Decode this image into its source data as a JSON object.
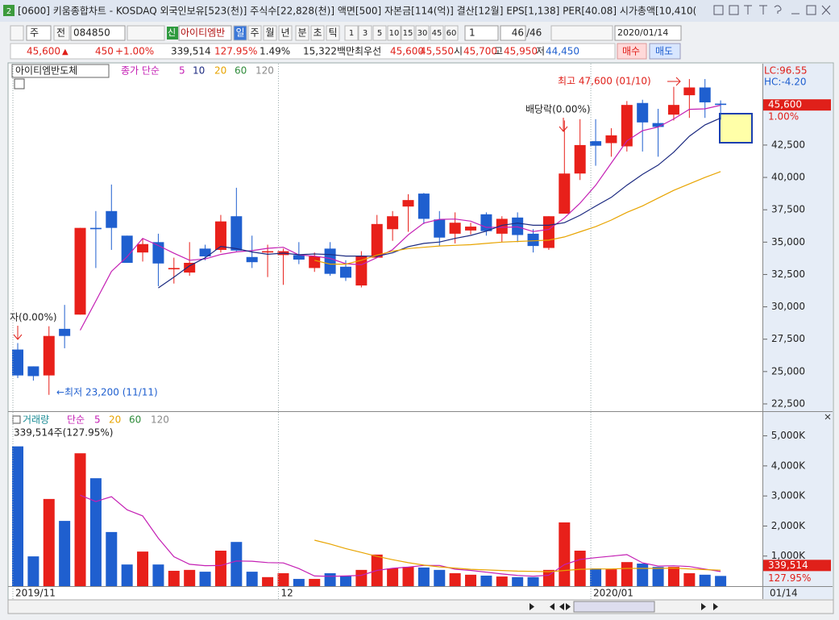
{
  "ui": {
    "window_icon": "2",
    "window_title": "[0600] 키움종합차트 - KOSDAQ 외국인보유[523(천)] 주식수[22,828(천)] 액면[500] 자본금[114(억)] 결산[12월] EPS[1,138] PER[40.08] 시가총액[10,410(",
    "toolbar": {
      "period_unit": "주",
      "prev": "전",
      "code": "084850",
      "credit": "신",
      "stock_name": "아이티엠반",
      "periods": [
        "일",
        "주",
        "월",
        "년",
        "분",
        "초",
        "틱"
      ],
      "intervals": [
        "1",
        "3",
        "5",
        "10",
        "15",
        "30",
        "45",
        "60"
      ],
      "count": "1",
      "page": "46",
      "total": "/46",
      "date": "2020/01/14"
    },
    "quote": {
      "price": "45,600",
      "arrow": "▲",
      "change": "450",
      "change_pct": "+1.00%",
      "volume": "339,514",
      "volume_ratio": "127.95%",
      "turnover": "1.49%",
      "amount": "15,322백만",
      "best_label": "최우선",
      "ask": "45,600",
      "bid": "45,550",
      "open_label": "시",
      "open": "45,700",
      "high_label": "고",
      "high": "45,950",
      "low_label": "저",
      "low": "44,450",
      "buy": "매수",
      "sell": "매도"
    }
  },
  "chart_data": [
    {
      "type": "candlestick",
      "title": "아이티엠반도체",
      "ma_label": "종가 단순",
      "up_color": "#e8201a",
      "down_color": "#1f5fcf",
      "open": [
        26700,
        25400,
        24700,
        28300,
        29400,
        36100,
        37400,
        35500,
        34200,
        35000,
        32900,
        32650,
        34500,
        34400,
        37000,
        33850,
        34200,
        34000,
        34000,
        33000,
        34500,
        33100,
        31650,
        33800,
        36000,
        37750,
        38750,
        36750,
        35650,
        35900,
        37150,
        35650,
        36900,
        35650,
        34550,
        37200,
        40300,
        42800,
        42650,
        42400,
        45750,
        44200,
        44850,
        46350,
        46950,
        45700
      ],
      "high": [
        27200,
        25400,
        28500,
        30150,
        36100,
        37400,
        39450,
        35500,
        35300,
        35650,
        33800,
        35000,
        34800,
        37100,
        39200,
        35500,
        34800,
        34500,
        35000,
        34200,
        35000,
        33600,
        34300,
        37100,
        37400,
        38700,
        38800,
        37400,
        37300,
        36500,
        37300,
        37000,
        37300,
        36000,
        37000,
        44400,
        44500,
        44500,
        43800,
        45900,
        46000,
        45300,
        47000,
        47600,
        47600,
        45950
      ],
      "low": [
        24500,
        24300,
        23200,
        26800,
        29400,
        33000,
        34400,
        33400,
        33500,
        31600,
        31800,
        32400,
        33600,
        34200,
        34300,
        33000,
        32300,
        31700,
        33300,
        32700,
        32400,
        32000,
        31500,
        33800,
        35100,
        35800,
        36400,
        34700,
        34900,
        35600,
        35500,
        35000,
        35000,
        34200,
        34400,
        37200,
        39800,
        40900,
        41600,
        42000,
        42000,
        41600,
        44400,
        44600,
        44600,
        44450
      ],
      "close": [
        24700,
        24650,
        27750,
        27750,
        36100,
        36000,
        36100,
        33400,
        34850,
        33350,
        33000,
        33400,
        33900,
        36600,
        34350,
        33450,
        34300,
        34300,
        33650,
        33900,
        32550,
        32250,
        33900,
        36400,
        37000,
        38250,
        36800,
        35350,
        36500,
        36200,
        35850,
        36800,
        35550,
        34700,
        37000,
        40300,
        42500,
        42450,
        43250,
        45600,
        44250,
        43900,
        45600,
        46950,
        45800,
        45600
      ],
      "series": [
        {
          "name": "5",
          "color": "#c41fb4",
          "values": [
            null,
            null,
            null,
            null,
            28190,
            30450,
            32740,
            33870,
            35290,
            34740,
            34140,
            33600,
            33700,
            34050,
            34250,
            34340,
            34520,
            34600,
            34010,
            33920,
            33740,
            33330,
            33250,
            33800,
            34420,
            35560,
            36470,
            36760,
            36780,
            36620,
            36140,
            36140,
            36180,
            35820,
            35980,
            36870,
            38010,
            39390,
            41100,
            42820,
            43610,
            43890,
            44520,
            45260,
            45300,
            45570
          ]
        },
        {
          "name": "10",
          "color": "#1c2a80",
          "values": [
            null,
            null,
            null,
            null,
            null,
            null,
            null,
            null,
            null,
            31465,
            32295,
            33170,
            33785,
            34670,
            34495,
            34240,
            34060,
            34150,
            34030,
            34085,
            34040,
            33925,
            33925,
            33905,
            34170,
            34650,
            34900,
            35005,
            35290,
            35520,
            35850,
            36305,
            36470,
            36300,
            36300,
            36505,
            37075,
            37785,
            38460,
            39400,
            40240,
            40950,
            41955,
            43180,
            44060,
            44590
          ]
        },
        {
          "name": "20",
          "color": "#e8a400",
          "values": [
            null,
            null,
            null,
            null,
            null,
            null,
            null,
            null,
            null,
            null,
            null,
            null,
            null,
            null,
            null,
            null,
            null,
            null,
            null,
            33600,
            33300,
            33300,
            33600,
            34000,
            34300,
            34500,
            34600,
            34700,
            34750,
            34800,
            34900,
            35000,
            35050,
            35100,
            35150,
            35400,
            35800,
            36200,
            36700,
            37300,
            37800,
            38400,
            39000,
            39500,
            40000,
            40450
          ]
        },
        {
          "name": "60",
          "color": "#2e8b3a"
        },
        {
          "name": "120",
          "color": "#8a8a8a"
        }
      ],
      "ylim": [
        22000,
        48600
      ],
      "yticks": [
        {
          "value": 22500,
          "label": "22,500"
        },
        {
          "value": 25000,
          "label": "25,000"
        },
        {
          "value": 27500,
          "label": "27,500"
        },
        {
          "value": 30000,
          "label": "30,000"
        },
        {
          "value": 32500,
          "label": "32,500"
        },
        {
          "value": 35000,
          "label": "35,000"
        },
        {
          "value": 37500,
          "label": "37,500"
        },
        {
          "value": 40000,
          "label": "40,000"
        },
        {
          "value": 42500,
          "label": "42,500"
        }
      ],
      "annotations": {
        "high": "최고 47,600 (01/10)",
        "ex_dividend": "배당락(0.00%)",
        "ex_rights": "자(0.00%)",
        "low": "←최저 23,200 (11/11)"
      },
      "lc": "LC:96.55",
      "hc": "HC:-4.20",
      "current": {
        "value": 45600,
        "label": "45,600"
      },
      "change_label": "1.00%"
    },
    {
      "type": "bar",
      "title": "거래량",
      "ma_label": "단순",
      "categories": [
        "2019/11",
        null,
        null,
        null,
        null,
        null,
        null,
        null,
        null,
        null,
        null,
        null,
        null,
        null,
        null,
        null,
        null,
        "12",
        null,
        null,
        null,
        null,
        null,
        null,
        null,
        null,
        null,
        null,
        null,
        null,
        null,
        null,
        null,
        null,
        null,
        null,
        null,
        "2020/01",
        null,
        null,
        null,
        null,
        null,
        null,
        null,
        null
      ],
      "values": [
        4650,
        990,
        2900,
        2170,
        4420,
        3590,
        1800,
        720,
        1150,
        720,
        510,
        540,
        480,
        1180,
        1470,
        480,
        300,
        430,
        240,
        240,
        430,
        350,
        540,
        1050,
        590,
        640,
        620,
        540,
        430,
        380,
        350,
        320,
        300,
        300,
        540,
        2120,
        1180,
        590,
        560,
        800,
        750,
        640,
        640,
        430,
        380,
        339.514
      ],
      "series": [
        {
          "name": "5",
          "color": "#c41fb4",
          "values": [
            null,
            null,
            null,
            null,
            3026,
            2814,
            2976,
            2540,
            2336,
            1596,
            980,
            728,
            680,
            686,
            836,
            830,
            782,
            772,
            584,
            338,
            328,
            338,
            360,
            522,
            592,
            634,
            688,
            688,
            564,
            522,
            464,
            404,
            356,
            330,
            362,
            716,
            888,
            946,
            998,
            1050,
            776,
            668,
            678,
            652,
            568,
            486
          ]
        },
        {
          "name": "20",
          "color": "#e8a400",
          "values": [
            null,
            null,
            null,
            null,
            null,
            null,
            null,
            null,
            null,
            null,
            null,
            null,
            null,
            null,
            null,
            null,
            null,
            null,
            null,
            1530,
            1400,
            1250,
            1120,
            990,
            880,
            780,
            700,
            640,
            600,
            560,
            540,
            520,
            500,
            490,
            480,
            520,
            560,
            570,
            570,
            590,
            590,
            590,
            600,
            570,
            550,
            530
          ]
        },
        {
          "name": "60",
          "color": "#2e8b3a"
        },
        {
          "name": "120",
          "color": "#8a8a8a"
        }
      ],
      "ylim": [
        0,
        5740
      ],
      "yticks": [
        {
          "value": 1000,
          "label": "1,000K"
        },
        {
          "value": 2000,
          "label": "2,000K"
        },
        {
          "value": 3000,
          "label": "3,000K"
        },
        {
          "value": 4000,
          "label": "4,000K"
        },
        {
          "value": 5000,
          "label": "5,000K"
        }
      ],
      "value_label_text": "339,514주(127.95%)",
      "current": {
        "value": 339.514,
        "label": "339,514"
      },
      "ratio_label": "127.95%",
      "current_date": "01/14"
    }
  ]
}
